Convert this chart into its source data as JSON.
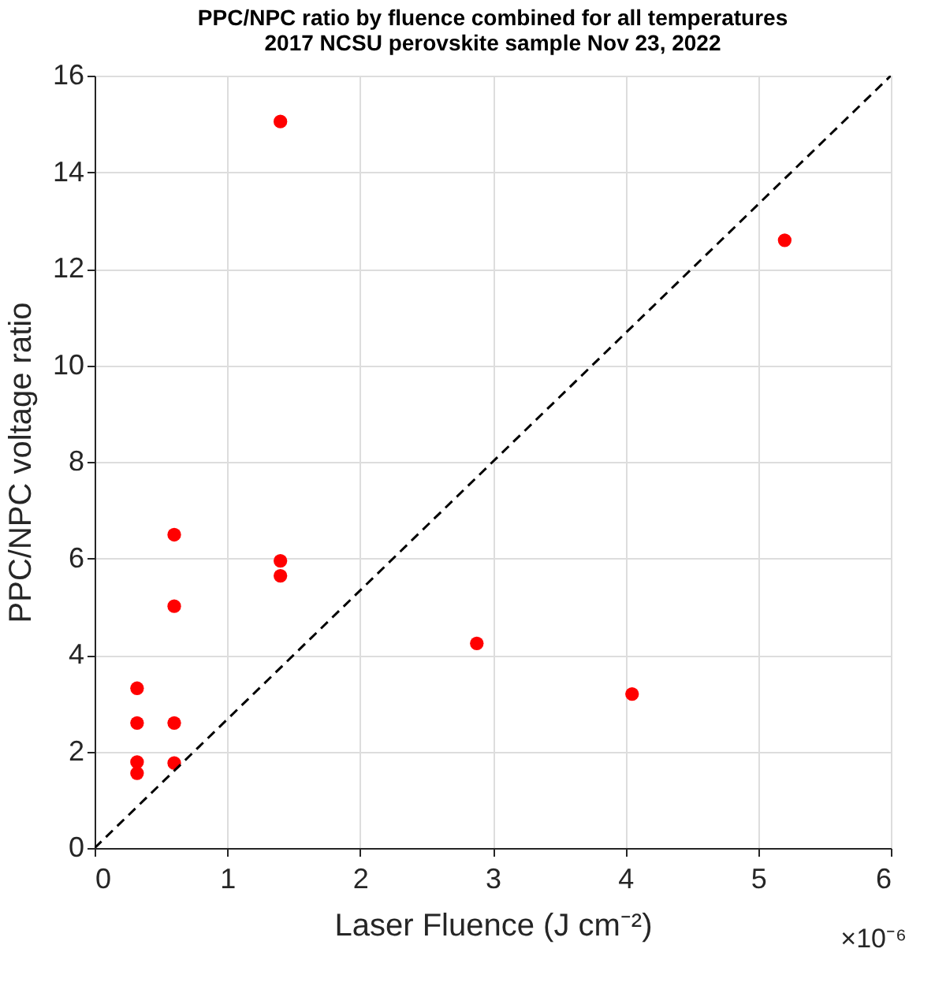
{
  "chart_data": {
    "type": "scatter",
    "title": "PPC/NPC ratio by fluence combined for all temperatures",
    "subtitle": "2017 NCSU perovskite sample Nov 23, 2022",
    "xlabel": "Laser Fluence (J cm⁻²)",
    "ylabel": "PPC/NPC voltage ratio",
    "annotations": [
      "×10⁻⁶"
    ],
    "series": [
      {
        "color": "#ff0000",
        "marker": "circle",
        "x": [
          0.32,
          0.32,
          0.32,
          0.32,
          0.6,
          0.6,
          0.6,
          0.6,
          1.4,
          1.4,
          1.4,
          2.88,
          4.05,
          5.2
        ],
        "values": [
          3.31,
          2.59,
          1.78,
          1.55,
          6.49,
          5.01,
          2.59,
          1.76,
          5.95,
          5.64,
          15.05,
          4.24,
          3.19,
          12.59
        ]
      },
      {
        "type": "line",
        "color": "#000000",
        "line_style": "dashed",
        "marker": "none",
        "x": [
          0,
          6
        ],
        "values": [
          0,
          16
        ]
      }
    ],
    "xlim": [
      0,
      6
    ],
    "xticks": [
      0,
      1,
      2,
      3,
      4,
      5,
      6
    ],
    "ylim": [
      0,
      16
    ],
    "yticks": [
      0,
      2,
      4,
      6,
      8,
      10,
      12,
      14,
      16
    ],
    "grid": true
  }
}
